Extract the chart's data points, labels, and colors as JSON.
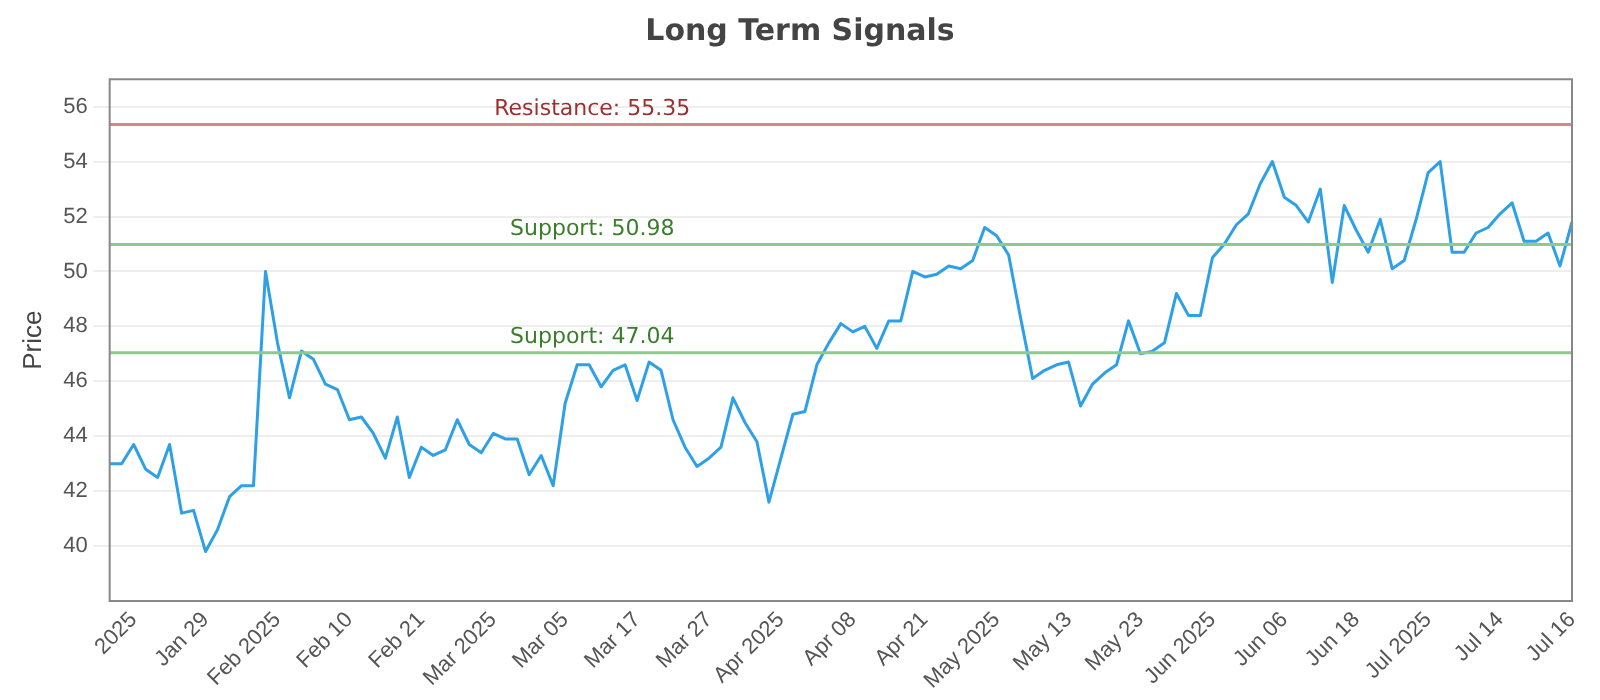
{
  "chart_data": {
    "type": "line",
    "title": "Long Term Signals",
    "ylabel": "Price",
    "categories": [
      null,
      null,
      "2025",
      null,
      null,
      null,
      null,
      null,
      "Jan 29",
      null,
      null,
      null,
      null,
      null,
      "Feb 2025",
      null,
      null,
      null,
      null,
      null,
      "Feb 10",
      null,
      null,
      null,
      null,
      null,
      "Feb 21",
      null,
      null,
      null,
      null,
      null,
      "Mar 2025",
      null,
      null,
      null,
      null,
      null,
      "Mar 05",
      null,
      null,
      null,
      null,
      null,
      "Mar 17",
      null,
      null,
      null,
      null,
      null,
      "Mar 27",
      null,
      null,
      null,
      null,
      null,
      "Apr 2025",
      null,
      null,
      null,
      null,
      null,
      "Apr 08",
      null,
      null,
      null,
      null,
      null,
      "Apr 21",
      null,
      null,
      null,
      null,
      null,
      "May 2025",
      null,
      null,
      null,
      null,
      null,
      "May 13",
      null,
      null,
      null,
      null,
      null,
      "May 23",
      null,
      null,
      null,
      null,
      null,
      "Jun 2025",
      null,
      null,
      null,
      null,
      null,
      "Jun 06",
      null,
      null,
      null,
      null,
      null,
      "Jun 18",
      null,
      null,
      null,
      null,
      null,
      "Jul 2025",
      null,
      null,
      null,
      null,
      null,
      "Jul 14",
      null,
      null,
      null,
      null,
      null,
      "Jul 16"
    ],
    "series": [
      {
        "color": "#2ea0e6",
        "values": [
          43.0,
          43.0,
          43.7,
          42.8,
          42.5,
          43.7,
          41.2,
          41.3,
          39.8,
          40.6,
          41.8,
          42.2,
          42.2,
          50.0,
          47.4,
          45.4,
          47.1,
          46.8,
          45.9,
          45.7,
          44.6,
          44.7,
          44.1,
          43.2,
          44.7,
          42.5,
          43.6,
          43.3,
          43.5,
          44.6,
          43.7,
          43.4,
          44.1,
          43.9,
          43.9,
          42.6,
          43.3,
          42.2,
          45.2,
          46.6,
          46.6,
          45.8,
          46.4,
          46.6,
          45.3,
          46.7,
          46.4,
          44.6,
          43.6,
          42.9,
          43.2,
          43.6,
          45.4,
          44.5,
          43.8,
          41.6,
          43.2,
          44.8,
          44.9,
          46.6,
          47.4,
          48.1,
          47.8,
          48.0,
          47.2,
          48.2,
          48.2,
          50.0,
          49.8,
          49.9,
          50.2,
          50.1,
          50.4,
          51.6,
          51.3,
          50.6,
          48.3,
          46.1,
          46.4,
          46.6,
          46.7,
          45.1,
          45.9,
          46.3,
          46.6,
          48.2,
          47.0,
          47.1,
          47.4,
          49.2,
          48.4,
          48.4,
          50.5,
          51.0,
          51.7,
          52.1,
          53.2,
          54.0,
          52.7,
          52.4,
          51.8,
          53.0,
          49.6,
          52.4,
          51.5,
          50.7,
          51.9,
          50.1,
          50.4,
          51.9,
          53.6,
          54.0,
          50.7,
          50.7,
          51.4,
          51.6,
          52.1,
          52.5,
          51.1,
          51.1,
          51.4,
          50.2,
          51.8
        ]
      }
    ],
    "ylim": [
      38,
      57
    ],
    "yticks": [
      40,
      42,
      44,
      46,
      48,
      50,
      52,
      54,
      56
    ],
    "grid": "y",
    "legend": false,
    "marker": "none",
    "line_style": "solid",
    "ref_lines": [
      {
        "axis": "y",
        "value": 55.35,
        "label": "Resistance: 55.35",
        "color": "#d48a8a"
      },
      {
        "axis": "y",
        "value": 50.98,
        "label": "Support: 50.98",
        "color": "#8ec98e"
      },
      {
        "axis": "y",
        "value": 47.04,
        "label": "Support: 47.04",
        "color": "#8ec98e"
      }
    ]
  }
}
